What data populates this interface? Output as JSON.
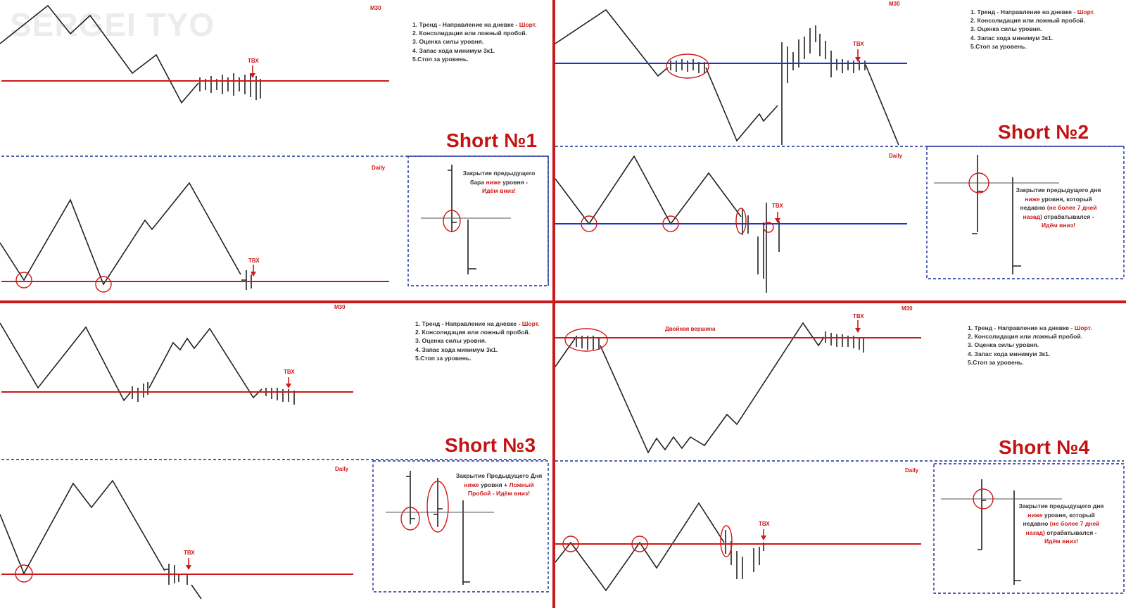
{
  "watermark": "SERGEI TYO",
  "labels": {
    "m30": "M30",
    "daily": "Daily",
    "tvx": "ТВХ"
  },
  "rules": {
    "r1_prefix": "1. Тренд - Направление на дневке - ",
    "r1_em": "Шорт.",
    "r2": "2. Консолидация или ложный пробой.",
    "r3": "3. Оценка силы уровня.",
    "r4": "4. Запас хода минимум 3к1.",
    "r5": "5.Стоп за уровень."
  },
  "panels": {
    "p1": {
      "title": "Short №1",
      "note": {
        "l1": "Закрытие предыдущего",
        "l2a": "бара ",
        "l2b": "ниже",
        "l2c": " уровня -",
        "l3": "Идём вниз!"
      }
    },
    "p2": {
      "title": "Short №2",
      "note": {
        "l1": "Закрытие предыдущего дня",
        "l2a": "ниже",
        "l2b": " уровня, который",
        "l3a": "недавно ",
        "l3b": "(не более 7 дней",
        "l4a": "назад)",
        "l4b": " отрабатывался -",
        "l5": "Идём вниз!"
      }
    },
    "p3": {
      "title": "Short №3",
      "note": {
        "l1": "Закрытие Предыдущего Дня",
        "l2a": "ниже",
        "l2b": " уровня + ",
        "l2c": "Ложный",
        "l3": "Пробой - Идём вниз!"
      }
    },
    "p4": {
      "title": "Short №4",
      "double_top": "Двойная вершина",
      "note": {
        "l1": "Закрытие предыдущего дня",
        "l2a": "ниже",
        "l2b": " уровня, который",
        "l3a": "недавно ",
        "l3b": "(не более 7 дней",
        "l4a": "назад)",
        "l4b": " отрабатывался -",
        "l5": "Идём вниз!"
      }
    }
  },
  "colors": {
    "level_red": "#d01818",
    "level_blue": "#1f2fd0",
    "divider": "#c81a1a",
    "dash_box": "#1a2a9a",
    "title": "#c41212"
  }
}
